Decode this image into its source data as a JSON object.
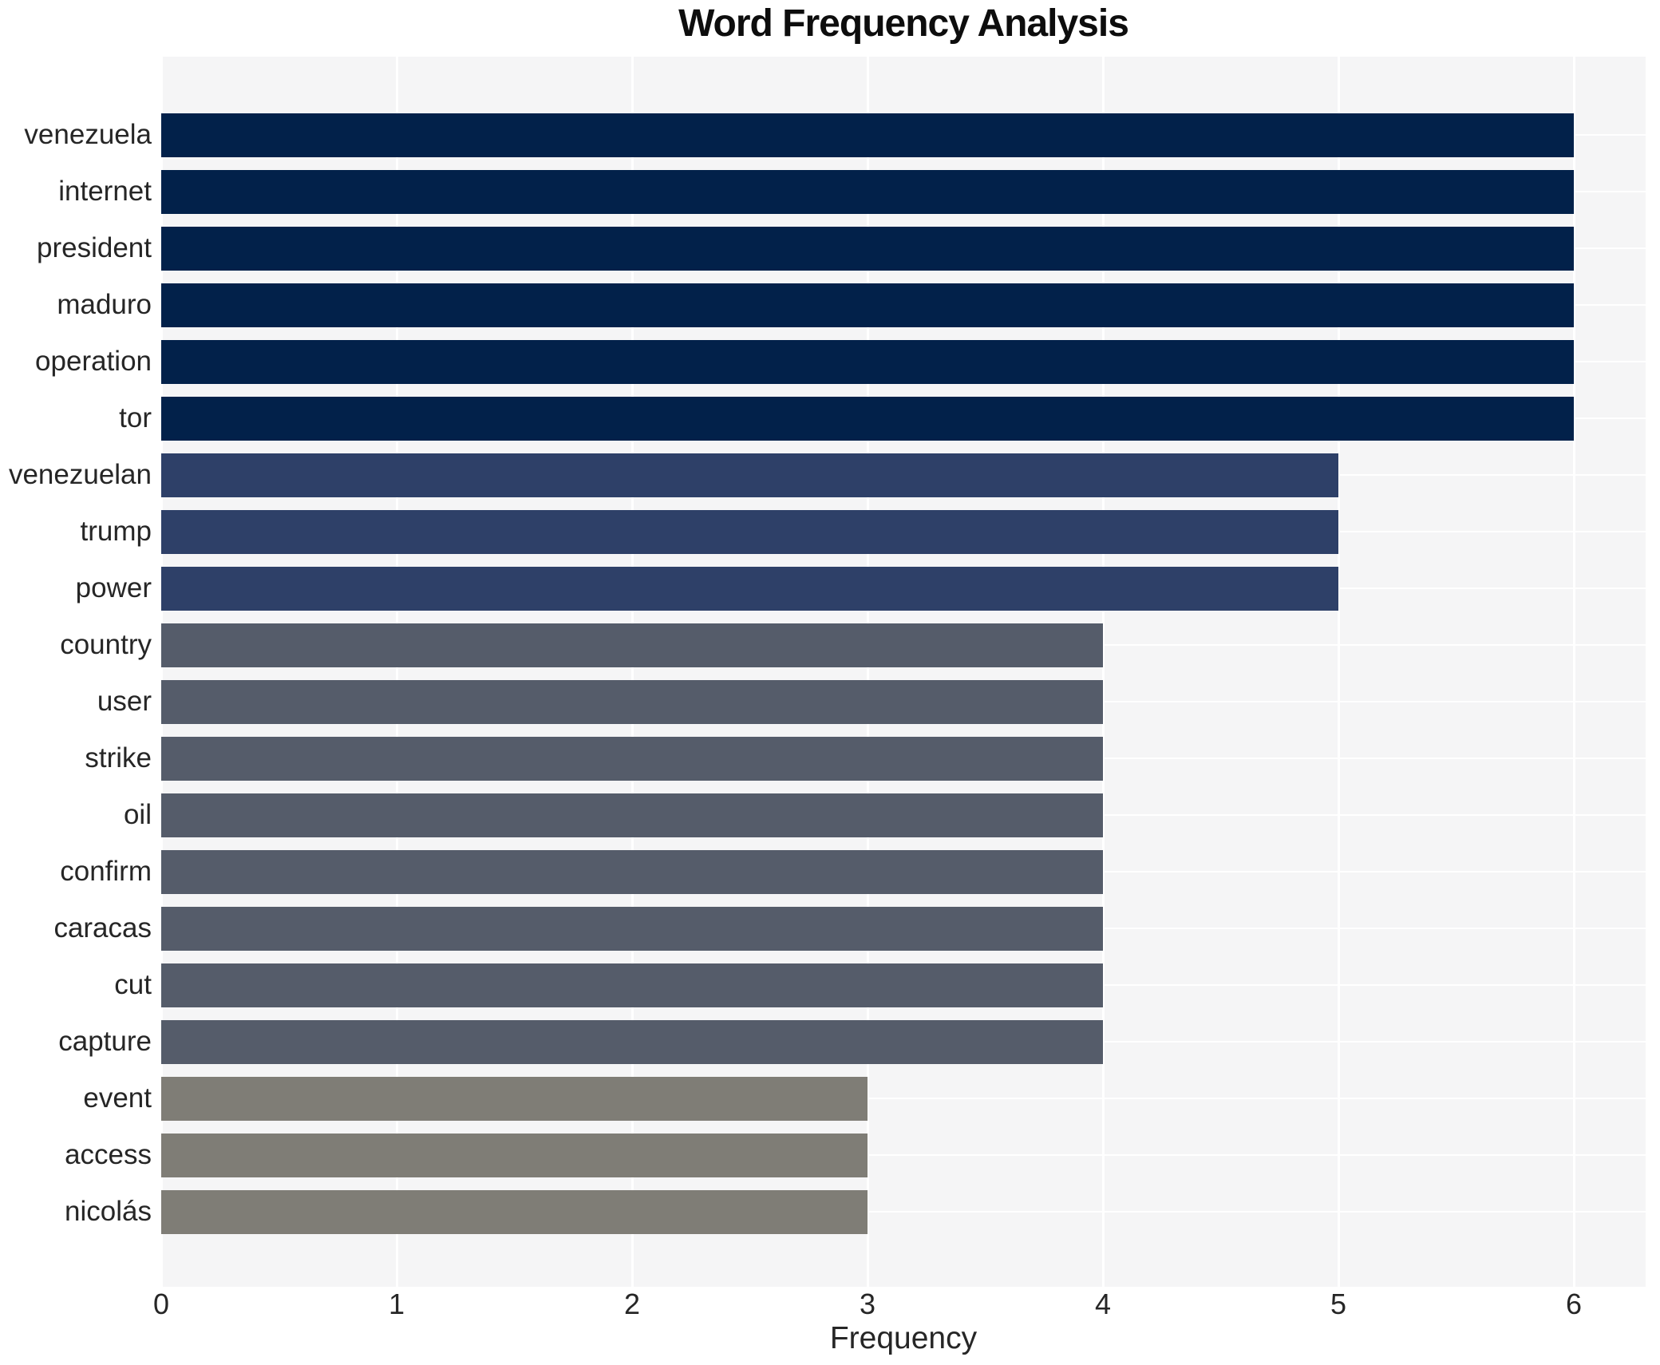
{
  "chart_data": {
    "type": "bar",
    "orientation": "horizontal",
    "title": "Word Frequency Analysis",
    "xlabel": "Frequency",
    "ylabel": "",
    "categories": [
      "venezuela",
      "internet",
      "president",
      "maduro",
      "operation",
      "tor",
      "venezuelan",
      "trump",
      "power",
      "country",
      "user",
      "strike",
      "oil",
      "confirm",
      "caracas",
      "cut",
      "capture",
      "event",
      "access",
      "nicolás"
    ],
    "values": [
      6,
      6,
      6,
      6,
      6,
      6,
      5,
      5,
      5,
      4,
      4,
      4,
      4,
      4,
      4,
      4,
      4,
      3,
      3,
      3
    ],
    "xticks": [
      0,
      1,
      2,
      3,
      4,
      5,
      6
    ],
    "xlim": [
      0,
      6.3
    ],
    "legend": "none",
    "grid": "on",
    "colors": {
      "bar_by_value": {
        "6": "#02214a",
        "5": "#2e4068",
        "4": "#555c6a",
        "3": "#7f7d76"
      },
      "panel_background": "#f5f5f6",
      "figure_background": "#ffffff",
      "gridline": "#ffffff",
      "text": "#262626",
      "title_text": "#0d0d0d"
    }
  }
}
